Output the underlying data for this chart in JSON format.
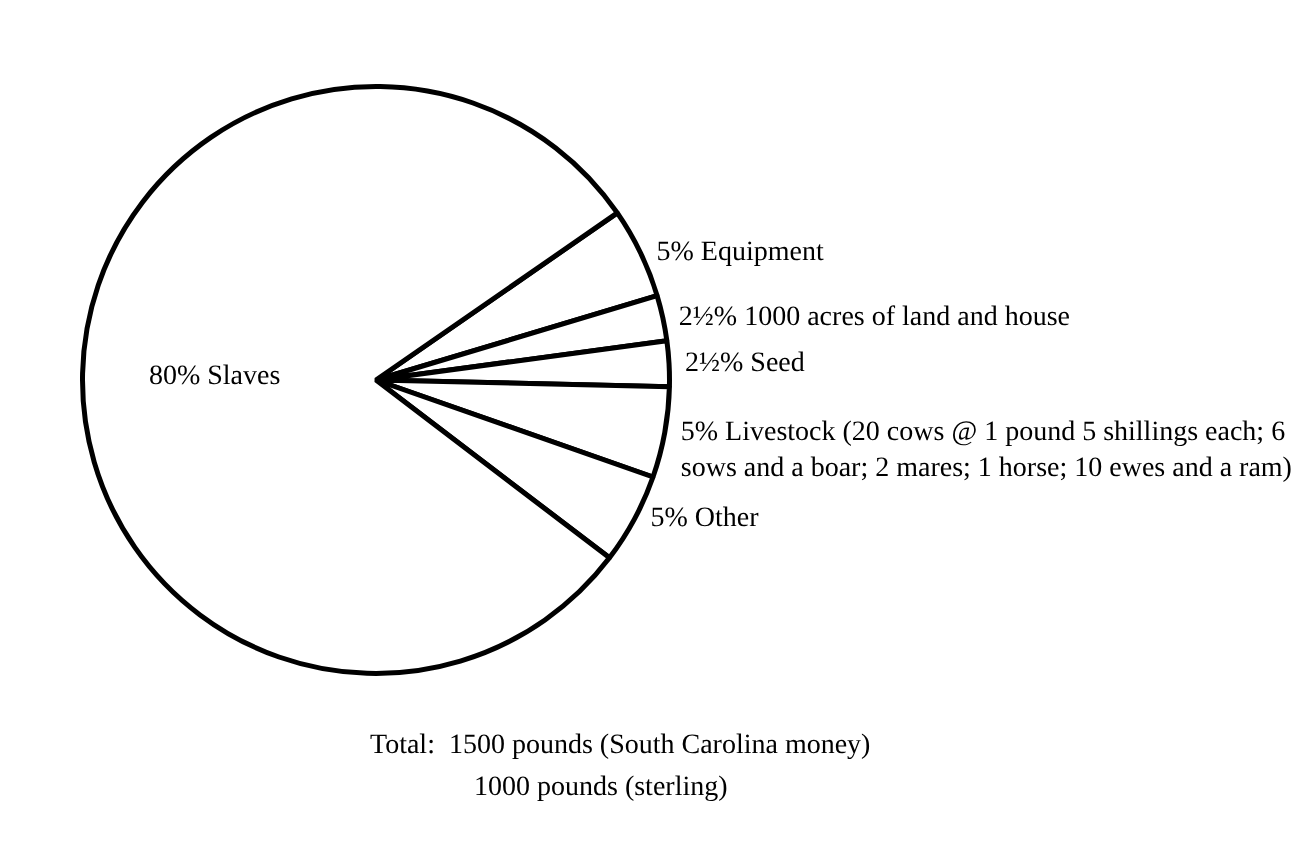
{
  "chart_data": {
    "type": "pie",
    "categories": [
      "5% Equipment",
      "2½% 1000 acres of land and house",
      "2½% Seed",
      "5% Livestock (20 cows @ 1 pound 5 shillings each; 6 sows and a boar; 2 mares; 1 horse; 10 ewes and a ram)",
      "5% Other",
      "80% Slaves"
    ],
    "values": [
      5,
      2.5,
      2.5,
      5,
      5,
      80
    ],
    "colors": [
      "#ffffff",
      "#ffffff",
      "#ffffff",
      "#ffffff",
      "#ffffff",
      "#ffffff"
    ],
    "legend": false,
    "annotations": [
      "Total:  1500 pounds (South Carolina money)",
      "1000 pounds (sterling)"
    ]
  }
}
